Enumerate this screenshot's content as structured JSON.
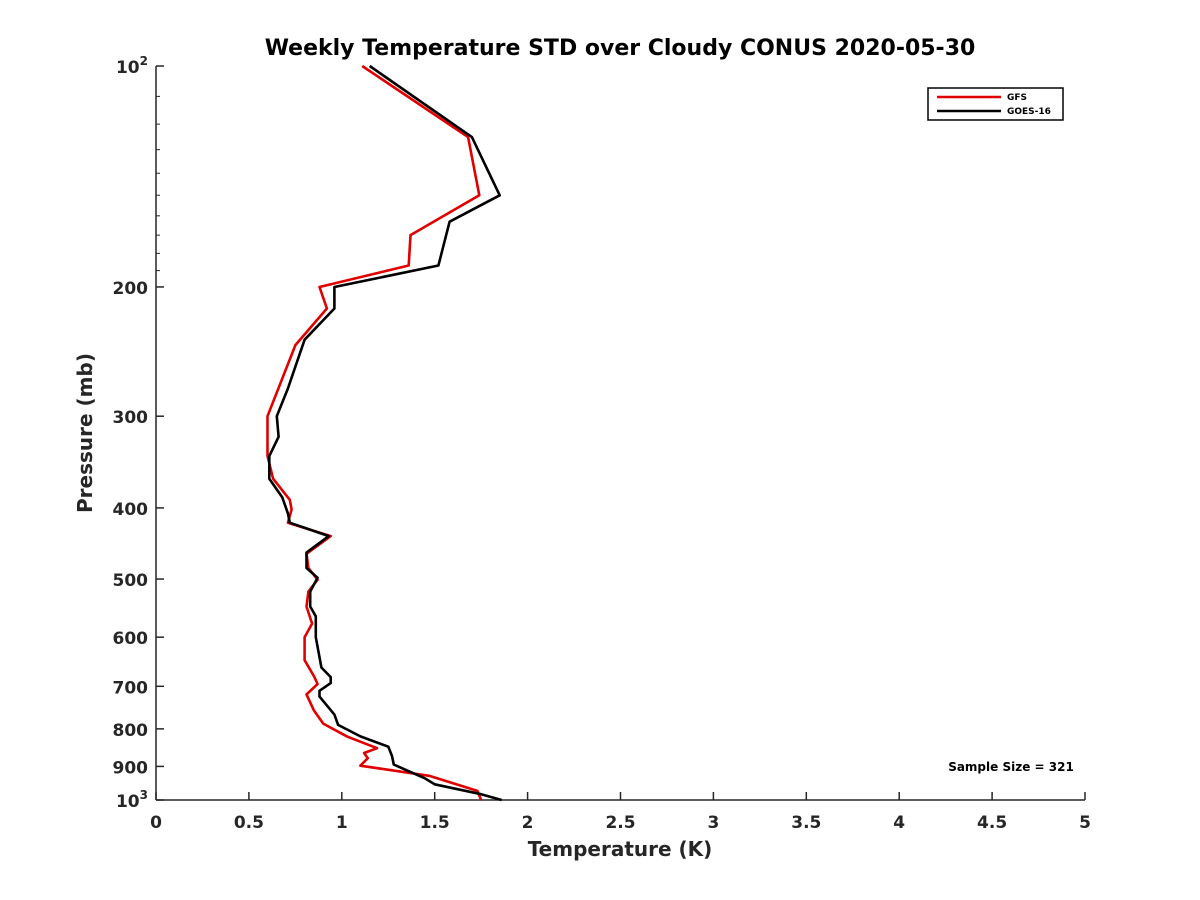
{
  "chart_data": {
    "type": "line",
    "title": "Weekly Temperature STD over Cloudy CONUS 2020-05-30",
    "xlabel": "Temperature (K)",
    "ylabel": "Pressure (mb)",
    "xlim": [
      0,
      5
    ],
    "ylim": [
      100,
      1000
    ],
    "y_scale": "log",
    "y_reversed": true,
    "x_ticks": [
      0,
      0.5,
      1,
      1.5,
      2,
      2.5,
      3,
      3.5,
      4,
      4.5,
      5
    ],
    "x_tick_labels": [
      "0",
      "0.5",
      "1",
      "1.5",
      "2",
      "2.5",
      "3",
      "3.5",
      "4",
      "4.5",
      "5"
    ],
    "y_ticks": [
      100,
      200,
      300,
      400,
      500,
      600,
      700,
      800,
      900,
      1000
    ],
    "y_tick_labels": [
      {
        "base": "10",
        "exp": "2"
      },
      {
        "text": "200"
      },
      {
        "text": "300"
      },
      {
        "text": "400"
      },
      {
        "text": "500"
      },
      {
        "text": "600"
      },
      {
        "text": "700"
      },
      {
        "text": "800"
      },
      {
        "text": "900"
      },
      {
        "base": "10",
        "exp": "3"
      }
    ],
    "grid": false,
    "legend_position": "top-right",
    "series": [
      {
        "name": "GFS",
        "color": "#e00000",
        "points": [
          [
            1.11,
            100
          ],
          [
            1.68,
            125
          ],
          [
            1.74,
            150
          ],
          [
            1.37,
            170
          ],
          [
            1.36,
            187
          ],
          [
            0.88,
            200
          ],
          [
            0.92,
            214
          ],
          [
            0.75,
            240
          ],
          [
            0.6,
            300
          ],
          [
            0.6,
            340
          ],
          [
            0.63,
            365
          ],
          [
            0.72,
            390
          ],
          [
            0.73,
            402
          ],
          [
            0.71,
            419
          ],
          [
            0.94,
            437
          ],
          [
            0.81,
            462
          ],
          [
            0.82,
            483
          ],
          [
            0.87,
            501
          ],
          [
            0.82,
            520
          ],
          [
            0.81,
            545
          ],
          [
            0.84,
            575
          ],
          [
            0.8,
            600
          ],
          [
            0.8,
            645
          ],
          [
            0.85,
            678
          ],
          [
            0.87,
            695
          ],
          [
            0.81,
            718
          ],
          [
            0.85,
            755
          ],
          [
            0.9,
            787
          ],
          [
            1.03,
            820
          ],
          [
            1.19,
            850
          ],
          [
            1.12,
            863
          ],
          [
            1.14,
            877
          ],
          [
            1.1,
            898
          ],
          [
            1.47,
            927
          ],
          [
            1.73,
            972
          ],
          [
            1.75,
            1000
          ]
        ]
      },
      {
        "name": "GOES-16",
        "color": "#000000",
        "points": [
          [
            1.15,
            100
          ],
          [
            1.7,
            125
          ],
          [
            1.85,
            150
          ],
          [
            1.58,
            163
          ],
          [
            1.52,
            187
          ],
          [
            0.96,
            200
          ],
          [
            0.96,
            214
          ],
          [
            0.8,
            236
          ],
          [
            0.71,
            275
          ],
          [
            0.65,
            300
          ],
          [
            0.66,
            320
          ],
          [
            0.61,
            340
          ],
          [
            0.61,
            365
          ],
          [
            0.68,
            387
          ],
          [
            0.71,
            407
          ],
          [
            0.72,
            419
          ],
          [
            0.93,
            437
          ],
          [
            0.81,
            460
          ],
          [
            0.81,
            483
          ],
          [
            0.87,
            498
          ],
          [
            0.83,
            520
          ],
          [
            0.83,
            545
          ],
          [
            0.86,
            562
          ],
          [
            0.86,
            600
          ],
          [
            0.89,
            660
          ],
          [
            0.94,
            680
          ],
          [
            0.94,
            693
          ],
          [
            0.88,
            710
          ],
          [
            0.88,
            723
          ],
          [
            0.96,
            765
          ],
          [
            0.98,
            790
          ],
          [
            1.1,
            819
          ],
          [
            1.25,
            846
          ],
          [
            1.27,
            871
          ],
          [
            1.28,
            895
          ],
          [
            1.45,
            935
          ],
          [
            1.5,
            952
          ],
          [
            1.75,
            982
          ],
          [
            1.86,
            1000
          ]
        ]
      }
    ],
    "annotation": "Sample Size = 321"
  }
}
